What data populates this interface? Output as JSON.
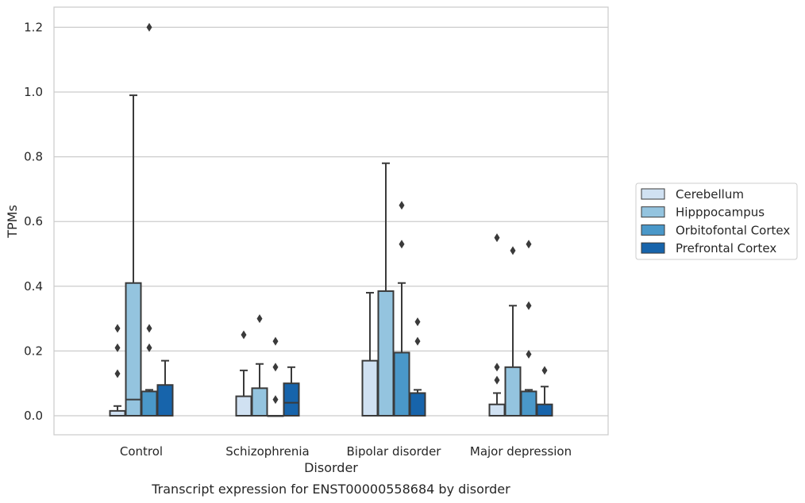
{
  "caption": "Transcript expression for ENST00000558684 by disorder",
  "chart_data": {
    "type": "box",
    "xlabel": "Disorder",
    "ylabel": "TPMs",
    "ylim": [
      -0.06,
      1.26
    ],
    "yticks": [
      "0.0",
      "0.2",
      "0.4",
      "0.6",
      "0.8",
      "1.0",
      "1.2"
    ],
    "grid": true,
    "legend_position": "right",
    "categories": [
      "Control",
      "Schizophrenia",
      "Bipolar disorder",
      "Major depression"
    ],
    "series": [
      {
        "name": "Cerebellum",
        "color": "#d0e1f2",
        "boxes": [
          {
            "whislo": 0.0,
            "q1": 0.0,
            "med": 0.0,
            "q3": 0.015,
            "whishi": 0.03,
            "fliers": [
              0.13,
              0.21,
              0.27
            ]
          },
          {
            "whislo": 0.0,
            "q1": 0.0,
            "med": 0.0,
            "q3": 0.06,
            "whishi": 0.14,
            "fliers": [
              0.25
            ]
          },
          {
            "whislo": 0.0,
            "q1": 0.0,
            "med": 0.0,
            "q3": 0.17,
            "whishi": 0.38,
            "fliers": []
          },
          {
            "whislo": 0.0,
            "q1": 0.0,
            "med": 0.0,
            "q3": 0.035,
            "whishi": 0.07,
            "fliers": [
              0.11,
              0.15,
              0.55
            ]
          }
        ]
      },
      {
        "name": "Hipppocampus",
        "color": "#94c4df",
        "boxes": [
          {
            "whislo": 0.0,
            "q1": 0.0,
            "med": 0.05,
            "q3": 0.41,
            "whishi": 0.99,
            "fliers": []
          },
          {
            "whislo": 0.0,
            "q1": 0.0,
            "med": 0.0,
            "q3": 0.085,
            "whishi": 0.16,
            "fliers": [
              0.3
            ]
          },
          {
            "whislo": 0.0,
            "q1": 0.0,
            "med": 0.0,
            "q3": 0.385,
            "whishi": 0.78,
            "fliers": []
          },
          {
            "whislo": 0.0,
            "q1": 0.0,
            "med": 0.0,
            "q3": 0.15,
            "whishi": 0.34,
            "fliers": [
              0.51
            ]
          }
        ]
      },
      {
        "name": "Orbitofontal Cortex",
        "color": "#4a98c9",
        "boxes": [
          {
            "whislo": 0.0,
            "q1": 0.0,
            "med": 0.0,
            "q3": 0.075,
            "whishi": 0.08,
            "fliers": [
              0.21,
              0.27,
              1.2
            ]
          },
          {
            "whislo": 0.0,
            "q1": 0.0,
            "med": 0.0,
            "q3": 0.0,
            "whishi": 0.0,
            "fliers": [
              0.05,
              0.15,
              0.23
            ]
          },
          {
            "whislo": 0.0,
            "q1": 0.0,
            "med": 0.0,
            "q3": 0.195,
            "whishi": 0.41,
            "fliers": [
              0.53,
              0.65
            ]
          },
          {
            "whislo": 0.0,
            "q1": 0.0,
            "med": 0.0,
            "q3": 0.075,
            "whishi": 0.08,
            "fliers": [
              0.19,
              0.34,
              0.53
            ]
          }
        ]
      },
      {
        "name": "Prefrontal Cortex",
        "color": "#1764ab",
        "boxes": [
          {
            "whislo": 0.0,
            "q1": 0.0,
            "med": 0.0,
            "q3": 0.095,
            "whishi": 0.17,
            "fliers": []
          },
          {
            "whislo": 0.0,
            "q1": 0.0,
            "med": 0.04,
            "q3": 0.1,
            "whishi": 0.15,
            "fliers": []
          },
          {
            "whislo": 0.0,
            "q1": 0.0,
            "med": 0.0,
            "q3": 0.07,
            "whishi": 0.08,
            "fliers": [
              0.23,
              0.29
            ]
          },
          {
            "whislo": 0.0,
            "q1": 0.0,
            "med": 0.0,
            "q3": 0.035,
            "whishi": 0.09,
            "fliers": [
              0.14
            ]
          }
        ]
      }
    ]
  }
}
